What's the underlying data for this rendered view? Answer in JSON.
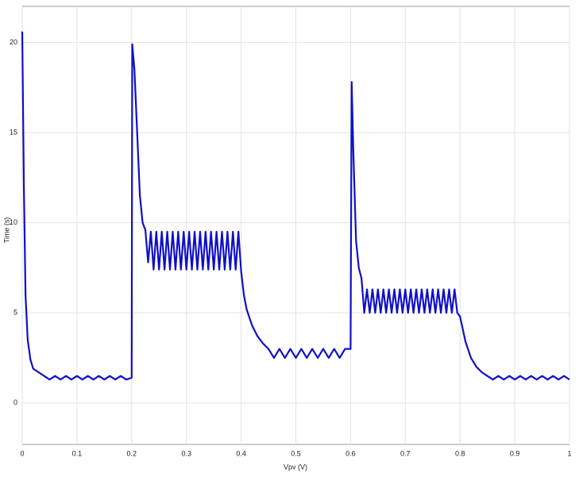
{
  "chart_data": {
    "type": "line",
    "xlabel": "Vpv (V)",
    "ylabel": "Time (s)",
    "xlim": [
      0,
      1
    ],
    "xticks": [
      0,
      0.1,
      0.2,
      0.3,
      0.4,
      0.5,
      0.6,
      0.7,
      0.8,
      0.9,
      1
    ],
    "ylim": [
      -2.3,
      22
    ],
    "yticks": [
      0,
      5,
      10,
      15,
      20
    ],
    "grid": true,
    "series": [
      {
        "color": "#1010c8",
        "x": [
          0,
          0.003,
          0.006,
          0.01,
          0.015,
          0.02,
          0.03,
          0.04,
          0.05,
          0.06,
          0.07,
          0.08,
          0.09,
          0.1,
          0.11,
          0.12,
          0.13,
          0.14,
          0.15,
          0.16,
          0.17,
          0.18,
          0.19,
          0.2,
          0.201,
          0.205,
          0.21,
          0.215,
          0.22,
          0.225,
          0.23,
          0.235,
          0.24,
          0.245,
          0.25,
          0.255,
          0.26,
          0.265,
          0.27,
          0.275,
          0.28,
          0.285,
          0.29,
          0.295,
          0.3,
          0.305,
          0.31,
          0.315,
          0.32,
          0.325,
          0.33,
          0.335,
          0.34,
          0.345,
          0.35,
          0.355,
          0.36,
          0.365,
          0.37,
          0.375,
          0.38,
          0.385,
          0.39,
          0.395,
          0.4,
          0.405,
          0.41,
          0.42,
          0.43,
          0.44,
          0.45,
          0.46,
          0.47,
          0.48,
          0.49,
          0.5,
          0.51,
          0.52,
          0.53,
          0.54,
          0.55,
          0.56,
          0.57,
          0.58,
          0.59,
          0.6,
          0.602,
          0.605,
          0.61,
          0.615,
          0.62,
          0.625,
          0.63,
          0.635,
          0.64,
          0.645,
          0.65,
          0.655,
          0.66,
          0.665,
          0.67,
          0.675,
          0.68,
          0.685,
          0.69,
          0.695,
          0.7,
          0.705,
          0.71,
          0.715,
          0.72,
          0.725,
          0.73,
          0.735,
          0.74,
          0.745,
          0.75,
          0.755,
          0.76,
          0.765,
          0.77,
          0.775,
          0.78,
          0.785,
          0.79,
          0.795,
          0.8,
          0.81,
          0.82,
          0.83,
          0.84,
          0.85,
          0.86,
          0.87,
          0.88,
          0.89,
          0.9,
          0.91,
          0.92,
          0.93,
          0.94,
          0.95,
          0.96,
          0.97,
          0.98,
          0.99,
          1.0
        ],
        "values": [
          20.6,
          12,
          6,
          3.5,
          2.4,
          1.9,
          1.7,
          1.5,
          1.3,
          1.5,
          1.3,
          1.5,
          1.3,
          1.5,
          1.3,
          1.5,
          1.3,
          1.5,
          1.3,
          1.5,
          1.3,
          1.5,
          1.3,
          1.4,
          19.9,
          18.5,
          15,
          11.5,
          10,
          9.6,
          7.8,
          9.5,
          7.4,
          9.5,
          7.4,
          9.5,
          7.4,
          9.5,
          7.4,
          9.5,
          7.4,
          9.5,
          7.4,
          9.5,
          7.4,
          9.5,
          7.4,
          9.5,
          7.4,
          9.5,
          7.4,
          9.5,
          7.4,
          9.5,
          7.4,
          9.5,
          7.4,
          9.5,
          7.4,
          9.5,
          7.4,
          9.5,
          7.4,
          9.5,
          7.3,
          6,
          5.2,
          4.3,
          3.7,
          3.3,
          3.0,
          2.5,
          3.0,
          2.5,
          3.0,
          2.5,
          3.0,
          2.5,
          3.0,
          2.5,
          3.0,
          2.5,
          3.0,
          2.5,
          3.0,
          3.0,
          17.8,
          14,
          9,
          7.5,
          6.9,
          5.0,
          6.3,
          5.0,
          6.3,
          5.0,
          6.3,
          5.0,
          6.3,
          5.0,
          6.3,
          5.0,
          6.3,
          5.0,
          6.3,
          5.0,
          6.3,
          5.0,
          6.3,
          5.0,
          6.3,
          5.0,
          6.3,
          5.0,
          6.3,
          5.0,
          6.3,
          5.0,
          6.3,
          5.0,
          6.3,
          5.0,
          6.3,
          5.0,
          6.3,
          5.0,
          4.8,
          3.4,
          2.5,
          2.0,
          1.7,
          1.5,
          1.3,
          1.5,
          1.3,
          1.5,
          1.3,
          1.5,
          1.3,
          1.5,
          1.3,
          1.5,
          1.3,
          1.5,
          1.3,
          1.5,
          1.3
        ]
      }
    ]
  }
}
